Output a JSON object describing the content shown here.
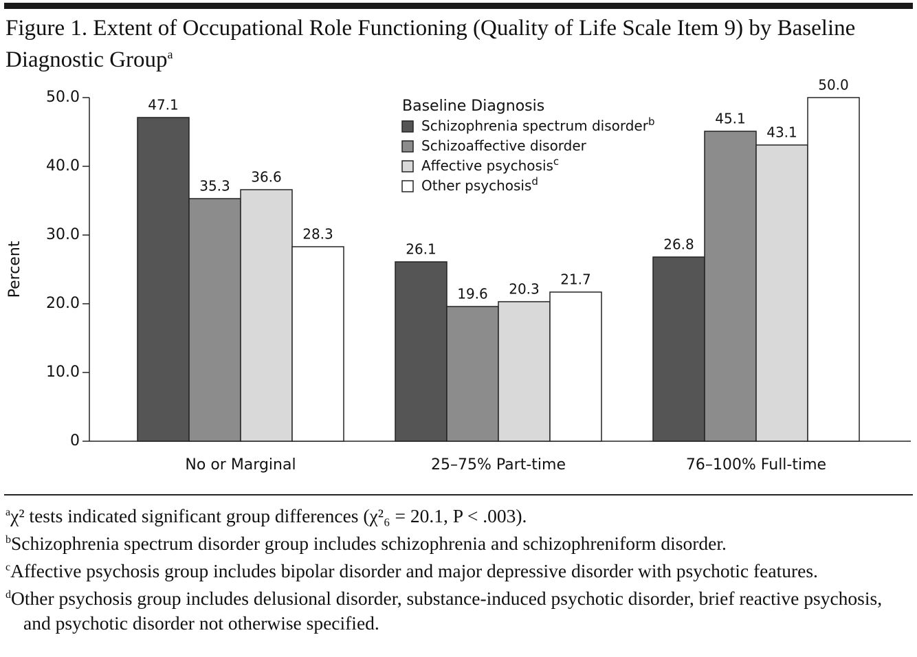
{
  "chart_data": {
    "type": "bar",
    "title": "Figure 1. Extent of Occupational Role Functioning (Quality of Life Scale Item 9) by Baseline Diagnostic Group",
    "title_superscript": "a",
    "y_label": "Percent",
    "legend_title": "Baseline Diagnosis",
    "categories": [
      "No or Marginal",
      "25–75% Part-time",
      "76–100% Full-time"
    ],
    "series": [
      {
        "name": "Schizophrenia spectrum disorder",
        "superscript": "b",
        "color": "#555555",
        "values": [
          47.1,
          26.1,
          26.8
        ],
        "value_labels": [
          "47.1",
          "26.1",
          "26.8"
        ]
      },
      {
        "name": "Schizoaffective disorder",
        "color": "#8c8c8c",
        "values": [
          35.3,
          19.6,
          45.1
        ],
        "value_labels": [
          "35.3",
          "19.6",
          "45.1"
        ]
      },
      {
        "name": "Affective psychosis",
        "superscript": "c",
        "color": "#d9d9d9",
        "values": [
          36.6,
          20.3,
          43.1
        ],
        "value_labels": [
          "36.6",
          "20.3",
          "43.1"
        ]
      },
      {
        "name": "Other psychosis",
        "superscript": "d",
        "color": "#ffffff",
        "values": [
          28.3,
          21.7,
          50.0
        ],
        "value_labels": [
          "28.3",
          "21.7",
          "50.0"
        ]
      }
    ],
    "ylim": [
      0,
      50
    ],
    "yticks": [
      0,
      {
        "value": 10,
        "label": "10.0"
      },
      {
        "value": 20,
        "label": "20.0"
      },
      {
        "value": 30,
        "label": "30.0"
      },
      {
        "value": 40,
        "label": "40.0"
      },
      {
        "value": 50,
        "label": "50.0"
      }
    ],
    "grid": false,
    "footnotes": [
      {
        "marker": "a",
        "text": "χ² tests indicated significant group differences (χ²₆ = 20.1, P < .003)."
      },
      {
        "marker": "b",
        "text": "Schizophrenia spectrum disorder group includes schizophrenia and schizophreniform disorder."
      },
      {
        "marker": "c",
        "text": "Affective psychosis group includes bipolar disorder and major depressive disorder with psychotic features."
      },
      {
        "marker": "d",
        "text": "Other psychosis group includes delusional disorder, substance-induced psychotic disorder, brief reactive psychosis, and psychotic disorder not otherwise specified."
      }
    ]
  }
}
